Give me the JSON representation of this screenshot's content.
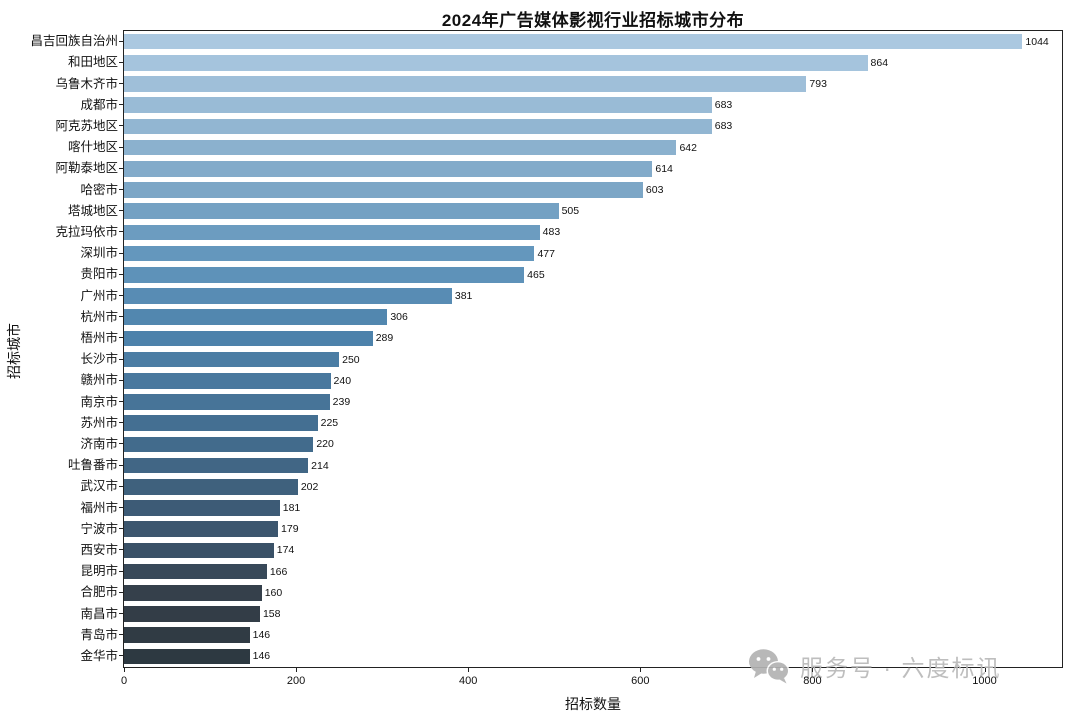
{
  "title": "2024年广告媒体影视行业招标城市分布",
  "watermark": {
    "text": "服务号 · 六度标讯",
    "icon": "wechat-icon",
    "color": "#b9b9b9"
  },
  "chart_data": {
    "type": "bar",
    "orientation": "horizontal",
    "title": "2024年广告媒体影视行业招标城市分布",
    "xlabel": "招标数量",
    "ylabel": "招标城市",
    "categories": [
      "昌吉回族自治州",
      "和田地区",
      "乌鲁木齐市",
      "成都市",
      "阿克苏地区",
      "喀什地区",
      "阿勒泰地区",
      "哈密市",
      "塔城地区",
      "克拉玛依市",
      "深圳市",
      "贵阳市",
      "广州市",
      "杭州市",
      "梧州市",
      "长沙市",
      "赣州市",
      "南京市",
      "苏州市",
      "济南市",
      "吐鲁番市",
      "武汉市",
      "福州市",
      "宁波市",
      "西安市",
      "昆明市",
      "合肥市",
      "南昌市",
      "青岛市",
      "金华市"
    ],
    "values": [
      1044,
      864,
      793,
      683,
      683,
      642,
      614,
      603,
      505,
      483,
      477,
      465,
      381,
      306,
      289,
      250,
      240,
      239,
      225,
      220,
      214,
      202,
      181,
      179,
      174,
      166,
      160,
      158,
      146,
      146
    ],
    "xlim": [
      0,
      1090
    ],
    "xticks": [
      0,
      200,
      400,
      600,
      800,
      1000
    ],
    "grid": false,
    "legend": null,
    "bar_label_color": "#111111",
    "axis_color": "#222222",
    "palette_stops": [
      {
        "pos": 0.0,
        "color": "#abc8e0"
      },
      {
        "pos": 0.14,
        "color": "#92b6d2"
      },
      {
        "pos": 0.24,
        "color": "#7ca6c6"
      },
      {
        "pos": 0.34,
        "color": "#6598be"
      },
      {
        "pos": 0.48,
        "color": "#4d82ab"
      },
      {
        "pos": 0.66,
        "color": "#426a8b"
      },
      {
        "pos": 0.83,
        "color": "#3a5166"
      },
      {
        "pos": 0.9,
        "color": "#353f4a"
      },
      {
        "pos": 1.0,
        "color": "#2d3941"
      }
    ]
  }
}
